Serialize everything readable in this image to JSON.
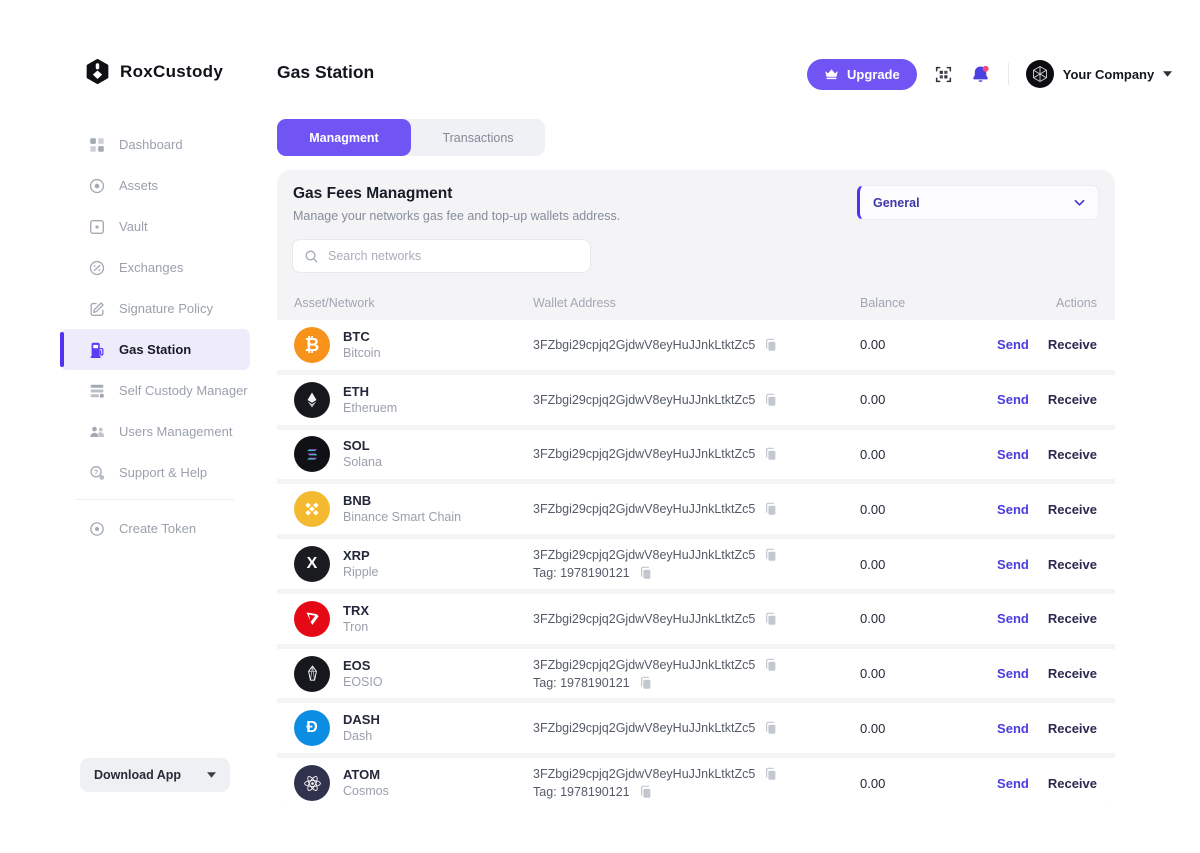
{
  "brand": {
    "name": "RoxCustody"
  },
  "header": {
    "page_title": "Gas Station",
    "upgrade_label": "Upgrade",
    "company_name": "Your Company"
  },
  "sidebar": {
    "items": [
      {
        "label": "Dashboard",
        "icon": "dashboard",
        "active": false
      },
      {
        "label": "Assets",
        "icon": "assets",
        "active": false
      },
      {
        "label": "Vault",
        "icon": "vault",
        "active": false
      },
      {
        "label": "Exchanges",
        "icon": "exchanges",
        "active": false
      },
      {
        "label": "Signature Policy",
        "icon": "signature",
        "active": false
      },
      {
        "label": "Gas Station",
        "icon": "gas",
        "active": true
      },
      {
        "label": "Self Custody Manager",
        "icon": "custody",
        "active": false
      },
      {
        "label": "Users Management",
        "icon": "users",
        "active": false
      },
      {
        "label": "Support & Help",
        "icon": "support",
        "active": false
      }
    ],
    "secondary_items": [
      {
        "label": "Create Token",
        "icon": "token",
        "active": false
      }
    ],
    "download_app_label": "Download App"
  },
  "tabs": [
    {
      "label": "Managment",
      "active": true
    },
    {
      "label": "Transactions",
      "active": false
    }
  ],
  "panel": {
    "title": "Gas Fees Managment",
    "subtitle": "Manage your networks gas fee and top-up wallets address.",
    "filter_selected": "General",
    "search_placeholder": "Search networks"
  },
  "table": {
    "columns": [
      "Asset/Network",
      "Wallet Address",
      "Balance",
      "Actions"
    ],
    "send_label": "Send",
    "receive_label": "Receive",
    "rows": [
      {
        "symbol": "BTC",
        "network": "Bitcoin",
        "icon": "btc",
        "color": "#F7931A",
        "address": "3FZbgi29cpjq2GjdwV8eyHuJJnkLtktZc5",
        "tag": "",
        "balance": "0.00"
      },
      {
        "symbol": "ETH",
        "network": "Etheruem",
        "icon": "eth",
        "color": "#17181d",
        "address": "3FZbgi29cpjq2GjdwV8eyHuJJnkLtktZc5",
        "tag": "",
        "balance": "0.00"
      },
      {
        "symbol": "SOL",
        "network": "Solana",
        "icon": "sol",
        "color": "#101114",
        "address": "3FZbgi29cpjq2GjdwV8eyHuJJnkLtktZc5",
        "tag": "",
        "balance": "0.00"
      },
      {
        "symbol": "BNB",
        "network": "Binance Smart Chain",
        "icon": "bnb",
        "color": "#F3BA2F",
        "address": "3FZbgi29cpjq2GjdwV8eyHuJJnkLtktZc5",
        "tag": "",
        "balance": "0.00"
      },
      {
        "symbol": "XRP",
        "network": "Ripple",
        "icon": "xrp",
        "color": "#1b1c20",
        "address": "3FZbgi29cpjq2GjdwV8eyHuJJnkLtktZc5",
        "tag": "Tag: 1978190121",
        "balance": "0.00"
      },
      {
        "symbol": "TRX",
        "network": "Tron",
        "icon": "trx",
        "color": "#E50915",
        "address": "3FZbgi29cpjq2GjdwV8eyHuJJnkLtktZc5",
        "tag": "",
        "balance": "0.00"
      },
      {
        "symbol": "EOS",
        "network": "EOSIO",
        "icon": "eos",
        "color": "#17181d",
        "address": "3FZbgi29cpjq2GjdwV8eyHuJJnkLtktZc5",
        "tag": "Tag: 1978190121",
        "balance": "0.00"
      },
      {
        "symbol": "DASH",
        "network": "Dash",
        "icon": "dash",
        "color": "#0c8de4",
        "address": "3FZbgi29cpjq2GjdwV8eyHuJJnkLtktZc5",
        "tag": "",
        "balance": "0.00"
      },
      {
        "symbol": "ATOM",
        "network": "Cosmos",
        "icon": "atom",
        "color": "#31334e",
        "address": "3FZbgi29cpjq2GjdwV8eyHuJJnkLtktZc5",
        "tag": "Tag: 1978190121",
        "balance": "0.00"
      }
    ]
  },
  "colors": {
    "accent": "#7155f4",
    "accent_deep": "#5232f0",
    "send": "#4b3ce0",
    "receive": "#2b2950",
    "card_bg": "#f4f4f7",
    "active_item_bg": "#eeecfb"
  }
}
